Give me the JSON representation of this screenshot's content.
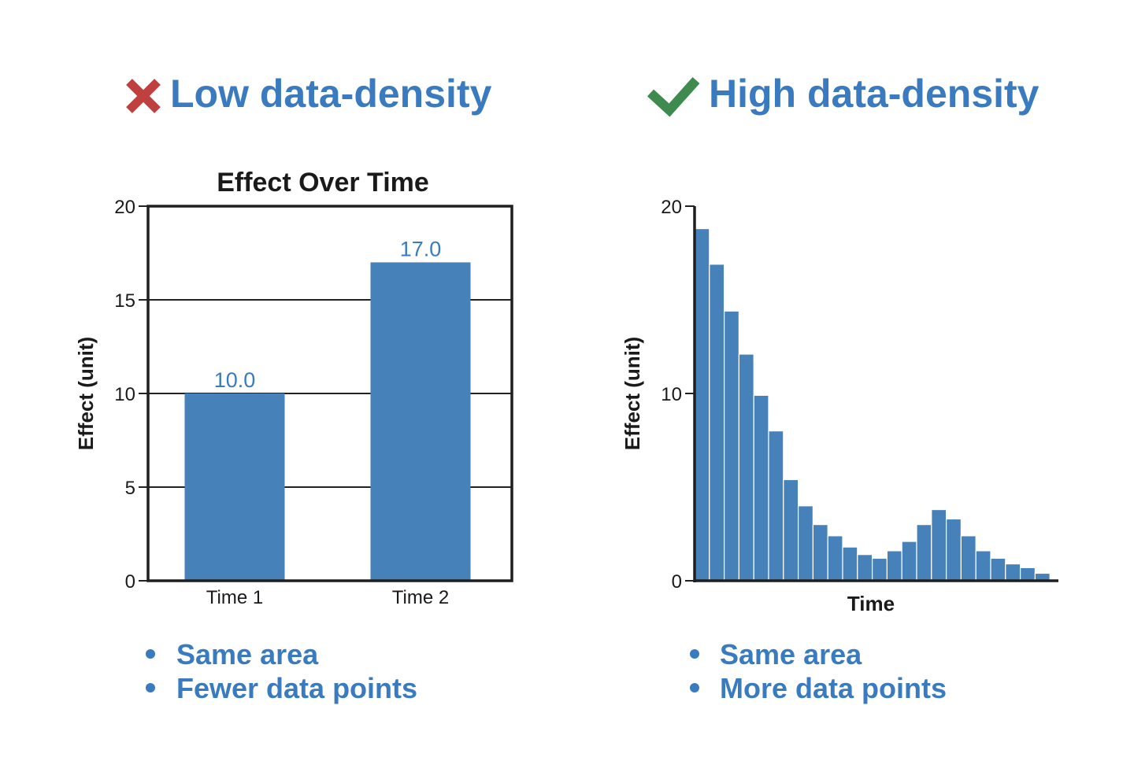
{
  "colors": {
    "accent": "#3a7bc0",
    "bar": "#4682b9",
    "bad": "#c0403f",
    "good": "#3f8a4f",
    "axis": "#1f1f1f"
  },
  "left": {
    "heading": "Low data-density",
    "icon": "x-mark-icon",
    "bullets": [
      "Same area",
      "Fewer data points"
    ]
  },
  "right": {
    "heading": "High data-density",
    "icon": "check-mark-icon",
    "bullets": [
      "Same area",
      "More data points"
    ]
  },
  "chart_data": [
    {
      "type": "bar",
      "title": "Effect Over Time",
      "xlabel": "",
      "ylabel": "Effect (unit)",
      "categories": [
        "Time 1",
        "Time 2"
      ],
      "values": [
        10.0,
        17.0
      ],
      "data_labels": [
        "10.0",
        "17.0"
      ],
      "ylim": [
        0,
        20
      ],
      "yticks": [
        0,
        5,
        10,
        15,
        20
      ],
      "grid": true
    },
    {
      "type": "bar",
      "title": "",
      "xlabel": "Time",
      "ylabel": "Effect (unit)",
      "values": [
        18.8,
        16.9,
        14.4,
        12.1,
        9.9,
        8.0,
        5.4,
        4.0,
        3.0,
        2.4,
        1.8,
        1.4,
        1.2,
        1.6,
        2.1,
        3.0,
        3.8,
        3.3,
        2.4,
        1.6,
        1.2,
        0.9,
        0.7,
        0.4
      ],
      "ylim": [
        0,
        20
      ],
      "yticks": [
        0,
        10,
        20
      ],
      "grid": false
    }
  ]
}
